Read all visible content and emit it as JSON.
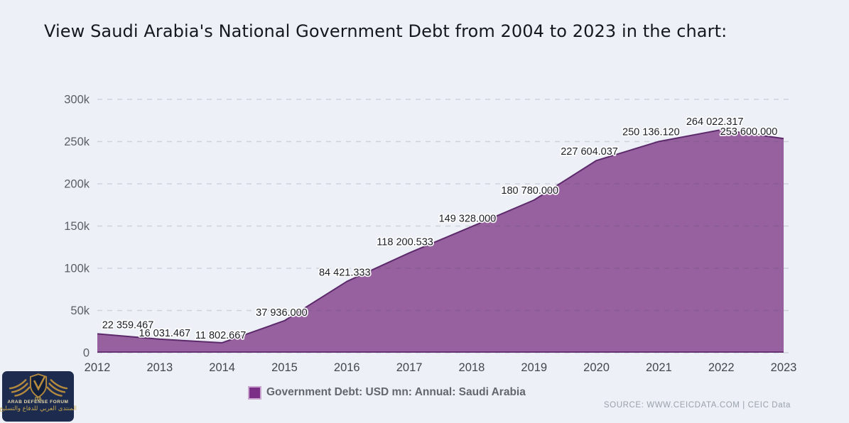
{
  "page": {
    "title": "View Saudi Arabia's National Government Debt from 2004 to 2023 in the chart:",
    "background_color": "#edf1f7"
  },
  "chart_data": {
    "type": "area",
    "x": [
      2012,
      2013,
      2014,
      2015,
      2016,
      2017,
      2018,
      2019,
      2020,
      2021,
      2022,
      2023
    ],
    "x_labels": [
      "2012",
      "2013",
      "2014",
      "2015",
      "2016",
      "2017",
      "2018",
      "2019",
      "2020",
      "2021",
      "2022",
      "2023"
    ],
    "series": [
      {
        "name": "Government Debt: USD mn: Annual: Saudi Arabia",
        "values": [
          22359.467,
          16031.467,
          11802.667,
          37936.0,
          84421.333,
          118200.533,
          149328.0,
          180780.0,
          227604.037,
          250136.12,
          264022.317,
          253600.0
        ]
      }
    ],
    "display_values": [
      "22 359.467",
      "16 031.467",
      "11 802.667",
      "37 936.000",
      "84 421.333",
      "118 200.533",
      "149 328.000",
      "180 780.000",
      "227 604.037",
      "250 136.120",
      "264 022.317",
      "253 600.000"
    ],
    "ylim": [
      0,
      300000
    ],
    "y_ticks": [
      {
        "value": 0,
        "label": "0"
      },
      {
        "value": 50000,
        "label": "50k"
      },
      {
        "value": 100000,
        "label": "100k"
      },
      {
        "value": 150000,
        "label": "150k"
      },
      {
        "value": 200000,
        "label": "200k"
      },
      {
        "value": 250000,
        "label": "250k"
      },
      {
        "value": 300000,
        "label": "300k"
      }
    ],
    "grid": "horizontal dashed",
    "legend_position": "bottom",
    "colors": {
      "area_fill": "#96619e",
      "line": "#5c2a6b",
      "gridline": "rgba(70,70,95,0.18)"
    }
  },
  "legend": {
    "label": "Government Debt: USD mn: Annual: Saudi Arabia",
    "swatch_color": "#7b2f86"
  },
  "source": {
    "text": "SOURCE: WWW.CEICDATA.COM | CEIC Data"
  },
  "logo": {
    "initials": "DA",
    "name": "ARAB DEFENSE FORUM",
    "arabic": "المنتدى العربي للدفاع والتسليح"
  }
}
